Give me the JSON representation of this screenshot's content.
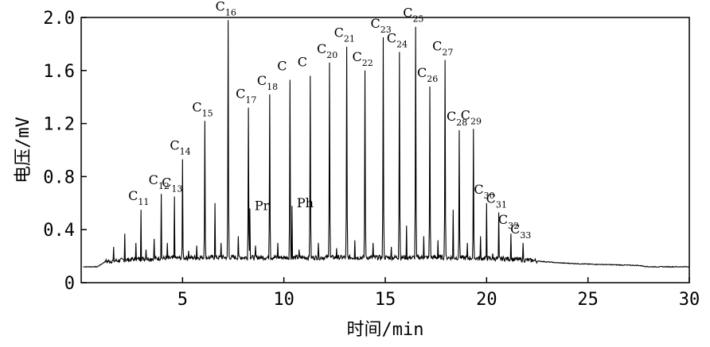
{
  "chart_data": {
    "type": "line",
    "title": "",
    "xlabel": "时间/min",
    "ylabel": "电压/mV",
    "xlim": [
      0,
      30
    ],
    "ylim": [
      0,
      2.0
    ],
    "x_ticks": [
      5,
      10,
      15,
      20,
      25,
      30
    ],
    "x_tick_labels": [
      "5",
      "10",
      "15",
      "20",
      "25",
      "30"
    ],
    "y_ticks": [
      0,
      0.4,
      0.8,
      1.2,
      1.6,
      2.0
    ],
    "y_tick_labels": [
      "0",
      "0.4",
      "0.8",
      "1.2",
      "1.6",
      "2.0"
    ],
    "grid": false,
    "legend": "none",
    "line_color": "#000000",
    "peaks": [
      {
        "x": 2.95,
        "y": 0.55,
        "label": "C",
        "sub": "11"
      },
      {
        "x": 3.95,
        "y": 0.67,
        "label": "C",
        "sub": "12"
      },
      {
        "x": 4.6,
        "y": 0.65,
        "label": "C",
        "sub": "13"
      },
      {
        "x": 5.0,
        "y": 0.93,
        "label": "C",
        "sub": "14"
      },
      {
        "x": 6.1,
        "y": 1.22,
        "label": "C",
        "sub": "15"
      },
      {
        "x": 7.25,
        "y": 1.98,
        "label": "C",
        "sub": "16"
      },
      {
        "x": 8.25,
        "y": 1.32,
        "label": "C",
        "sub": "17"
      },
      {
        "x": 8.32,
        "y": 0.56,
        "label": "Pr",
        "sub": ""
      },
      {
        "x": 9.3,
        "y": 1.42,
        "label": "C",
        "sub": "18"
      },
      {
        "x": 10.3,
        "y": 1.53,
        "label": "C",
        "sub": ""
      },
      {
        "x": 10.4,
        "y": 0.58,
        "label": "Ph",
        "sub": ""
      },
      {
        "x": 11.3,
        "y": 1.56,
        "label": "C",
        "sub": ""
      },
      {
        "x": 12.25,
        "y": 1.66,
        "label": "C",
        "sub": "20"
      },
      {
        "x": 13.1,
        "y": 1.78,
        "label": "C",
        "sub": "21"
      },
      {
        "x": 14.0,
        "y": 1.6,
        "label": "C",
        "sub": "22"
      },
      {
        "x": 14.9,
        "y": 1.85,
        "label": "C",
        "sub": "23"
      },
      {
        "x": 15.7,
        "y": 1.74,
        "label": "C",
        "sub": "24"
      },
      {
        "x": 16.5,
        "y": 1.93,
        "label": "C",
        "sub": "25"
      },
      {
        "x": 17.2,
        "y": 1.48,
        "label": "C",
        "sub": "26"
      },
      {
        "x": 17.95,
        "y": 1.68,
        "label": "C",
        "sub": "27"
      },
      {
        "x": 18.65,
        "y": 1.15,
        "label": "C",
        "sub": "28"
      },
      {
        "x": 19.35,
        "y": 1.16,
        "label": "C",
        "sub": "29"
      },
      {
        "x": 20.0,
        "y": 0.6,
        "label": "C",
        "sub": "30"
      },
      {
        "x": 20.6,
        "y": 0.53,
        "label": "C",
        "sub": "31"
      },
      {
        "x": 21.2,
        "y": 0.37,
        "label": "C",
        "sub": "32"
      },
      {
        "x": 21.8,
        "y": 0.3,
        "label": "C",
        "sub": "33"
      }
    ],
    "minor_peaks": [
      {
        "x": 1.6,
        "y": 0.27
      },
      {
        "x": 2.15,
        "y": 0.37
      },
      {
        "x": 2.7,
        "y": 0.3
      },
      {
        "x": 3.2,
        "y": 0.25
      },
      {
        "x": 3.6,
        "y": 0.33
      },
      {
        "x": 4.25,
        "y": 0.3
      },
      {
        "x": 5.3,
        "y": 0.24
      },
      {
        "x": 5.7,
        "y": 0.28
      },
      {
        "x": 6.6,
        "y": 0.6
      },
      {
        "x": 6.9,
        "y": 0.3
      },
      {
        "x": 7.75,
        "y": 0.35
      },
      {
        "x": 8.6,
        "y": 0.28
      },
      {
        "x": 9.7,
        "y": 0.3
      },
      {
        "x": 10.75,
        "y": 0.25
      },
      {
        "x": 11.7,
        "y": 0.3
      },
      {
        "x": 12.6,
        "y": 0.26
      },
      {
        "x": 13.5,
        "y": 0.32
      },
      {
        "x": 14.4,
        "y": 0.3
      },
      {
        "x": 15.3,
        "y": 0.27
      },
      {
        "x": 16.05,
        "y": 0.43
      },
      {
        "x": 16.9,
        "y": 0.35
      },
      {
        "x": 17.6,
        "y": 0.32
      },
      {
        "x": 18.35,
        "y": 0.55
      },
      {
        "x": 19.05,
        "y": 0.3
      },
      {
        "x": 19.7,
        "y": 0.35
      },
      {
        "x": 20.3,
        "y": 0.22
      },
      {
        "x": 22.3,
        "y": 0.17
      }
    ],
    "baseline": [
      {
        "x": 0.1,
        "y": 0.12
      },
      {
        "x": 0.8,
        "y": 0.12
      },
      {
        "x": 1.2,
        "y": 0.16
      },
      {
        "x": 3.0,
        "y": 0.18
      },
      {
        "x": 6.0,
        "y": 0.19
      },
      {
        "x": 10.0,
        "y": 0.19
      },
      {
        "x": 14.0,
        "y": 0.19
      },
      {
        "x": 18.0,
        "y": 0.19
      },
      {
        "x": 21.0,
        "y": 0.18
      },
      {
        "x": 22.0,
        "y": 0.17
      },
      {
        "x": 23.5,
        "y": 0.15
      },
      {
        "x": 25.0,
        "y": 0.14
      },
      {
        "x": 27.5,
        "y": 0.13
      },
      {
        "x": 28.0,
        "y": 0.12
      },
      {
        "x": 30.0,
        "y": 0.12
      }
    ]
  }
}
